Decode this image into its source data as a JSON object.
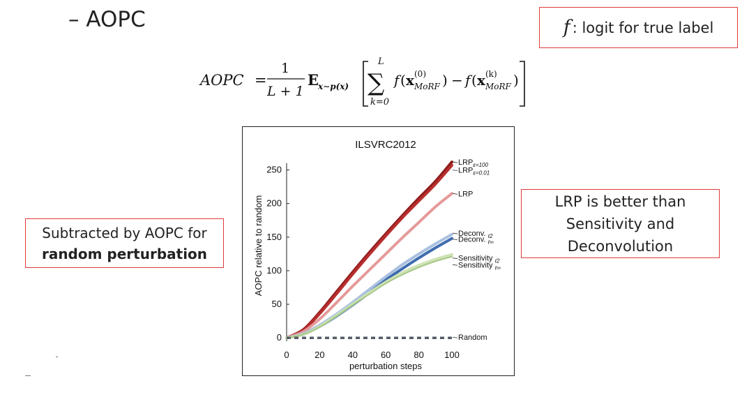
{
  "heading": "– AOPC",
  "f_box": {
    "symbol": "f",
    "text": ": logit for true label"
  },
  "formula": {
    "lhs": "AOPC",
    "num": "1",
    "den": "L + 1",
    "expect": "E",
    "expect_sub": "x∼p(x)",
    "sum_top": "L",
    "sum_bottom": "k=0",
    "sup0": "(0)",
    "supk": "(k)",
    "sub": "MoRF"
  },
  "random_box": {
    "line1": "Subtracted by AOPC for",
    "line2": "random perturbation"
  },
  "lrp_box": {
    "line1": "LRP is better than",
    "line2": "Sensitivity and",
    "line3": "Deconvolution"
  },
  "colors": {
    "lrp_eps100": "#8e1c1c",
    "lrp_eps001": "#b72e2e",
    "lrp": "#e59a9a",
    "deconv_l2": "#a9c0df",
    "deconv_linf": "#3f6cae",
    "sens_l2": "#cfe3b4",
    "sens_linf": "#a8c88a",
    "random": "#555b66",
    "box_border": "#e03a3a"
  },
  "chart_data": {
    "type": "line",
    "title": "ILSVRC2012",
    "xlabel": "perturbation steps",
    "ylabel": "AOPC relative to random",
    "xlim": [
      0,
      100
    ],
    "ylim": [
      -5,
      260
    ],
    "xticks": [
      0,
      20,
      40,
      60,
      80,
      100
    ],
    "yticks": [
      0,
      50,
      100,
      150,
      200,
      250
    ],
    "x": [
      0,
      10,
      20,
      30,
      40,
      50,
      60,
      70,
      80,
      90,
      100
    ],
    "series": [
      {
        "name": "LRP",
        "sub": "ε=100",
        "color_key": "lrp_eps100",
        "width": 4,
        "values": [
          0,
          12,
          38,
          68,
          98,
          127,
          155,
          182,
          208,
          233,
          262
        ]
      },
      {
        "name": "LRP",
        "sub": "ε=0.01",
        "color_key": "lrp_eps001",
        "width": 4,
        "values": [
          0,
          11,
          36,
          65,
          95,
          124,
          152,
          179,
          204,
          229,
          257
        ]
      },
      {
        "name": "LRP",
        "sub": "",
        "color_key": "lrp",
        "width": 4,
        "values": [
          0,
          9,
          28,
          52,
          77,
          101,
          125,
          149,
          172,
          195,
          215
        ]
      },
      {
        "name": "Deconv.",
        "sub": "ℓ2",
        "color_key": "deconv_l2",
        "width": 4,
        "values": [
          0,
          6,
          19,
          35,
          53,
          72,
          91,
          109,
          125,
          140,
          154
        ]
      },
      {
        "name": "Deconv.",
        "sub": "ℓ∞",
        "color_key": "deconv_linf",
        "width": 4,
        "values": [
          0,
          5,
          17,
          32,
          49,
          67,
          86,
          103,
          119,
          134,
          148
        ]
      },
      {
        "name": "Sensitivity",
        "sub": "ℓ2",
        "color_key": "sens_l2",
        "width": 4,
        "values": [
          0,
          5,
          17,
          33,
          50,
          67,
          83,
          97,
          108,
          117,
          124
        ]
      },
      {
        "name": "Sensitivity",
        "sub": "ℓ∞",
        "color_key": "sens_linf",
        "width": 2,
        "values": [
          0,
          5,
          16,
          32,
          49,
          65,
          81,
          94,
          105,
          114,
          121
        ]
      },
      {
        "name": "Random",
        "sub": "",
        "color_key": "random",
        "width": 3.5,
        "dashed": true,
        "values": [
          0,
          0,
          0,
          0,
          0,
          0,
          0,
          0,
          0,
          0,
          0
        ]
      }
    ],
    "legend_labels": [
      {
        "text": "LRP",
        "sub": "ε=100",
        "at_value": 262
      },
      {
        "text": "LRP",
        "sub": "ε=0.01",
        "at_value": 250
      },
      {
        "text": "LRP",
        "sub": "",
        "at_value": 215
      },
      {
        "text": "Deconv. ",
        "sub": "ℓ2",
        "at_value": 156
      },
      {
        "text": "Deconv. ",
        "sub": "ℓ∞",
        "at_value": 147
      },
      {
        "text": "Sensitivity ",
        "sub": "ℓ2",
        "at_value": 119
      },
      {
        "text": "Sensitivity ",
        "sub": "ℓ∞",
        "at_value": 109
      },
      {
        "text": "Random",
        "sub": "",
        "at_value": 1
      }
    ],
    "grid": false,
    "legend": "right, inline labels"
  }
}
